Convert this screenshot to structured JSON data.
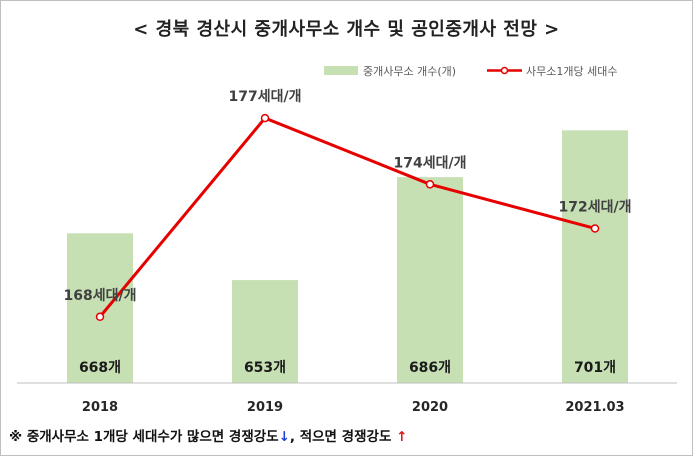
{
  "title": "< 경북 경산시 중개사무소 개수 및 공인중개사 전망 >",
  "chart_data": {
    "type": "bar",
    "categories": [
      "2018",
      "2019",
      "2020",
      "2021.03"
    ],
    "series": [
      {
        "name": "중개사무소 개수(개)",
        "type": "bar",
        "axis": "left",
        "values": [
          668,
          653,
          686,
          701
        ],
        "labels": [
          "668개",
          "653개",
          "686개",
          "701개"
        ],
        "color": "#c6e0b4"
      },
      {
        "name": "사무소1개당 세대수",
        "type": "line",
        "axis": "right",
        "values": [
          168,
          177,
          174,
          172
        ],
        "labels": [
          "168세대/개",
          "177세대/개",
          "174세대/개",
          "172세대/개"
        ],
        "color": "#e60000"
      }
    ],
    "ylim_left": [
      620,
      712
    ],
    "ylim_right": [
      165,
      178
    ],
    "grid": false,
    "legend": "top-right"
  },
  "footnote": {
    "text1": "※ 중개사무소 1개당 세대수가 많으면 경쟁강도",
    "arrow_down": "↓",
    "text2": ", 적으면 경쟁강도",
    "arrow_up": "↑"
  }
}
